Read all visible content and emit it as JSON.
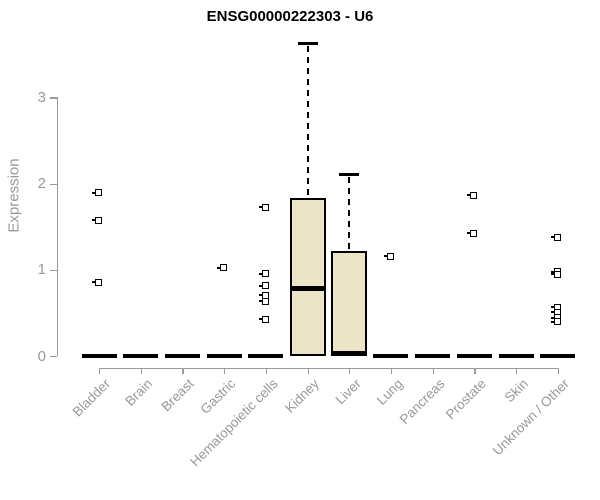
{
  "header": {
    "title": "ENSG00000222303 - U6"
  },
  "chart_data": {
    "type": "boxplot",
    "title": "ENSG00000222303 - U6",
    "xlabel": "",
    "ylabel": "Expression",
    "ylim": [
      0,
      3.7
    ],
    "yticks": [
      0,
      1,
      2,
      3
    ],
    "grid": false,
    "legend": "none",
    "categories": [
      "Bladder",
      "Brain",
      "Breast",
      "Gastric",
      "Hematopoietic cells",
      "Kidney",
      "Liver",
      "Lung",
      "Pancreas",
      "Prostate",
      "Skin",
      "Unknown / Other"
    ],
    "boxes": [
      {
        "category": "Bladder",
        "low": 0,
        "q1": 0,
        "median": 0,
        "q3": 0,
        "high": 0,
        "outliers": [
          1.89,
          1.57,
          0.85
        ]
      },
      {
        "category": "Brain",
        "low": 0,
        "q1": 0,
        "median": 0,
        "q3": 0,
        "high": 0,
        "outliers": []
      },
      {
        "category": "Breast",
        "low": 0,
        "q1": 0,
        "median": 0,
        "q3": 0,
        "high": 0,
        "outliers": []
      },
      {
        "category": "Gastric",
        "low": 0,
        "q1": 0,
        "median": 0,
        "q3": 0,
        "high": 0,
        "outliers": [
          1.02
        ]
      },
      {
        "category": "Hematopoietic cells",
        "low": 0,
        "q1": 0,
        "median": 0,
        "q3": 0,
        "high": 0,
        "outliers": [
          1.72,
          0.95,
          0.81,
          0.7,
          0.63,
          0.42
        ]
      },
      {
        "category": "Kidney",
        "low": 0,
        "q1": 0,
        "median": 0.78,
        "q3": 1.83,
        "high": 3.63,
        "outliers": []
      },
      {
        "category": "Liver",
        "low": 0,
        "q1": 0,
        "median": 0,
        "q3": 1.22,
        "high": 2.11,
        "outliers": []
      },
      {
        "category": "Lung",
        "low": 0,
        "q1": 0,
        "median": 0,
        "q3": 0,
        "high": 0,
        "outliers": [
          1.15
        ]
      },
      {
        "category": "Pancreas",
        "low": 0,
        "q1": 0,
        "median": 0,
        "q3": 0,
        "high": 0,
        "outliers": []
      },
      {
        "category": "Prostate",
        "low": 0,
        "q1": 0,
        "median": 0,
        "q3": 0,
        "high": 0,
        "outliers": [
          1.86,
          1.42
        ]
      },
      {
        "category": "Skin",
        "low": 0,
        "q1": 0,
        "median": 0,
        "q3": 0,
        "high": 0,
        "outliers": []
      },
      {
        "category": "Unknown / Other",
        "low": 0,
        "q1": 0,
        "median": 0,
        "q3": 0,
        "high": 0,
        "outliers": [
          1.37,
          0.97,
          0.94,
          0.56,
          0.5,
          0.44,
          0.39
        ]
      }
    ],
    "colors": {
      "box_fill": "#ebe4c9",
      "box_border": "#000000",
      "median": "#000000",
      "whisker": "#000000",
      "axis": "#9a9a9a",
      "tick_label": "#999999",
      "title": "#000000",
      "background": "#ffffff"
    }
  }
}
